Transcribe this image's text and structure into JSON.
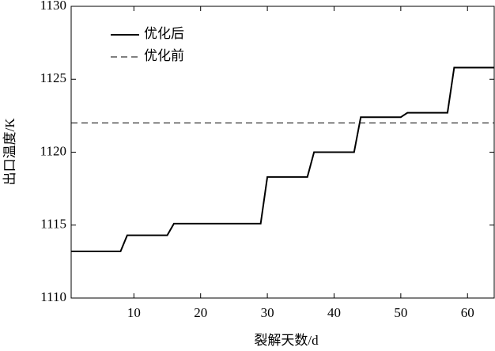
{
  "chart_data": {
    "type": "line",
    "xlabel": "裂解天数/d",
    "ylabel": "出口温度/K",
    "xlim": [
      0.6,
      64
    ],
    "xticks": [
      10,
      20,
      30,
      40,
      50,
      60
    ],
    "ylim": [
      1110,
      1130
    ],
    "yticks": [
      1110,
      1115,
      1120,
      1125,
      1130
    ],
    "legend": "upper left",
    "series": [
      {
        "name": "优化后",
        "color": "#000000",
        "dash": "solid",
        "x": [
          0.6,
          8,
          9,
          15,
          16,
          29,
          30,
          36,
          37,
          43,
          44,
          50,
          51,
          57,
          58,
          64
        ],
        "values": [
          1113.2,
          1113.2,
          1114.3,
          1114.3,
          1115.1,
          1115.1,
          1118.3,
          1118.3,
          1120.0,
          1120.0,
          1122.4,
          1122.4,
          1122.7,
          1122.7,
          1125.8,
          1125.8
        ]
      },
      {
        "name": "优化前",
        "color": "#000000",
        "dash": "dashed",
        "x": [
          0.6,
          64
        ],
        "values": [
          1122,
          1122
        ]
      }
    ]
  }
}
